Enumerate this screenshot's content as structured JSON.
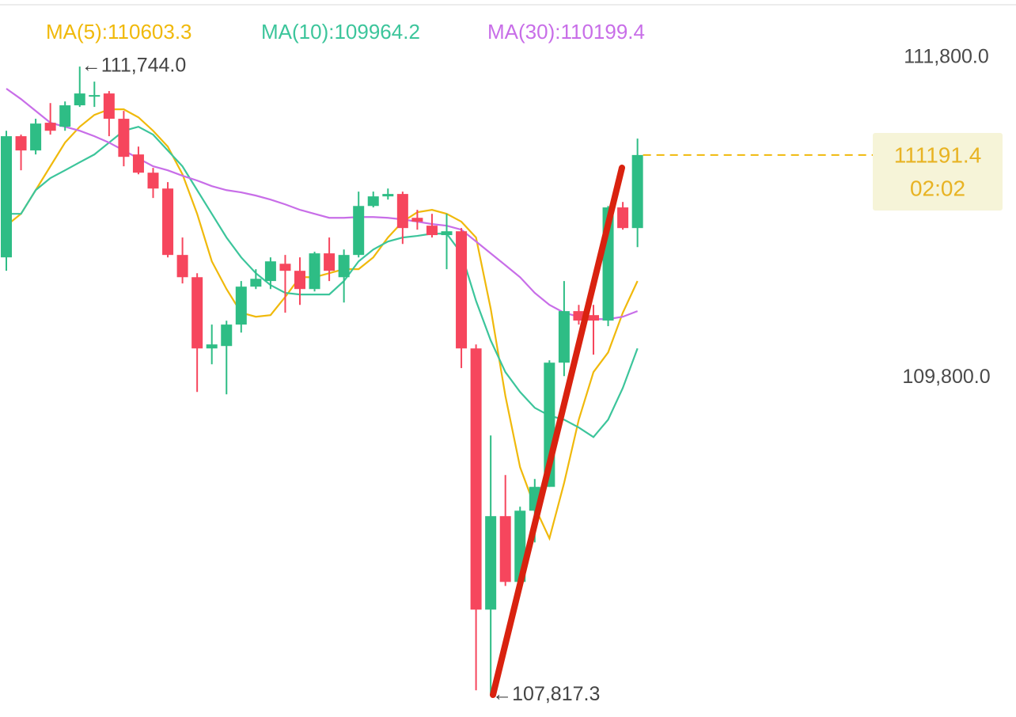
{
  "chart_data": {
    "type": "candlestick",
    "up_color": "#2ebd85",
    "down_color": "#f6465d",
    "ylim": [
      107680,
      112160
    ],
    "yticks": [
      {
        "value": 111800,
        "label": "111,800.0"
      },
      {
        "value": 109800,
        "label": "109,800.0"
      }
    ],
    "open": [
      110552,
      111309,
      111220,
      111393,
      111368,
      111502,
      111556,
      111576,
      111418,
      111195,
      111081,
      110982,
      110567,
      110428,
      109983,
      109998,
      110132,
      110369,
      110404,
      110512,
      110468,
      110354,
      110577,
      110428,
      110567,
      110873,
      110933,
      110948,
      110799,
      110750,
      110691,
      110715,
      109983,
      108351,
      108935,
      108524,
      108969,
      109118,
      109894,
      110216,
      110191,
      110157,
      110864,
      110735
    ],
    "high": [
      111343,
      111319,
      111418,
      111516,
      111526,
      111744,
      111650,
      111591,
      111467,
      111244,
      111111,
      111022,
      110676,
      110453,
      110132,
      110156,
      110404,
      110478,
      110552,
      110567,
      110552,
      110587,
      110676,
      110601,
      110963,
      110963,
      110982,
      110963,
      110849,
      110824,
      110824,
      110735,
      110008,
      109439,
      109192,
      108994,
      109167,
      109909,
      110404,
      110255,
      110255,
      110873,
      110898,
      111294
    ],
    "low": [
      110468,
      111096,
      111195,
      111319,
      111343,
      111492,
      111492,
      111309,
      111121,
      111071,
      110923,
      110552,
      110389,
      109711,
      109884,
      109696,
      110082,
      110354,
      110354,
      110206,
      110255,
      110339,
      110404,
      110270,
      110552,
      110864,
      110913,
      110636,
      110725,
      110676,
      110478,
      109860,
      107847,
      107817.3,
      108499,
      108499,
      108771,
      109118,
      109810,
      110132,
      109944,
      110122,
      110725,
      110616
    ],
    "close": [
      111309,
      111220,
      111388,
      111343,
      111502,
      111576,
      111566,
      111418,
      111180,
      111081,
      110982,
      110567,
      110428,
      109983,
      110008,
      110132,
      110369,
      110418,
      110527,
      110468,
      110354,
      110577,
      110468,
      110567,
      110873,
      110933,
      110948,
      110735,
      110775,
      110691,
      110715,
      109983,
      108351,
      108935,
      108524,
      108969,
      109118,
      109894,
      110216,
      110157,
      110157,
      110864,
      110735,
      111191.4
    ],
    "series": [
      {
        "name": "MA(5):110603.3",
        "color": "#f0b90b",
        "values": [
          110750,
          110824,
          110972,
          111121,
          111269,
          111368,
          111442,
          111477,
          111477,
          111427,
          111343,
          111244,
          111071,
          110824,
          110527,
          110354,
          110206,
          110181,
          110191,
          110305,
          110428,
          110428,
          110453,
          110478,
          110478,
          110552,
          110676,
          110775,
          110834,
          110849,
          110824,
          110775,
          110676,
          110231,
          109686,
          109241,
          108994,
          108796,
          109142,
          109538,
          109835,
          109958,
          110206,
          110404
        ]
      },
      {
        "name": "MA(10):109964.2",
        "color": "#3cc59b",
        "values": [
          110824,
          110824,
          110972,
          111047,
          111096,
          111146,
          111195,
          111269,
          111343,
          111368,
          111319,
          111220,
          111121,
          110972,
          110824,
          110676,
          110552,
          110453,
          110379,
          110330,
          110320,
          110320,
          110320,
          110404,
          110527,
          110601,
          110651,
          110676,
          110686,
          110700,
          110700,
          110577,
          110280,
          110033,
          109835,
          109711,
          109612,
          109563,
          109538,
          109489,
          109429,
          109538,
          109736,
          109983
        ]
      },
      {
        "name": "MA(30):110199.4",
        "color": "#c86ee8",
        "values": [
          111606,
          111541,
          111467,
          111393,
          111368,
          111343,
          111309,
          111269,
          111220,
          111170,
          111121,
          111096,
          111062,
          111032,
          110997,
          110972,
          110958,
          110938,
          110913,
          110883,
          110849,
          110824,
          110799,
          110799,
          110804,
          110804,
          110799,
          110789,
          110775,
          110760,
          110750,
          110725,
          110651,
          110577,
          110503,
          110428,
          110330,
          110255,
          110206,
          110181,
          110166,
          110166,
          110181,
          110216
        ]
      }
    ],
    "last_price": 111191.4,
    "countdown": "02:02",
    "annotations": [
      {
        "value": 111744,
        "label": "←111,744.0"
      },
      {
        "value": 107817.3,
        "label": "←107,817.3"
      }
    ]
  }
}
